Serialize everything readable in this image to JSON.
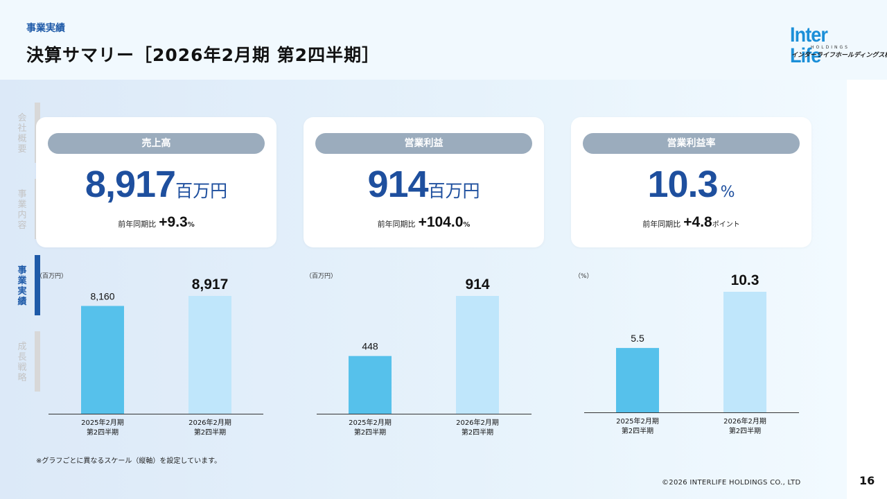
{
  "header": {
    "section_label": "事業実績",
    "title": "決算サマリー［2026年2月期 第2四半期］",
    "logo": {
      "main": "Inter Life",
      "sub": "HOLDINGS",
      "jp": "インターライフホールディングス株式会社"
    }
  },
  "side_nav": [
    {
      "label": "会社概要",
      "active": false
    },
    {
      "label": "事業内容",
      "active": false
    },
    {
      "label": "事業実績",
      "active": true
    },
    {
      "label": "成長戦略",
      "active": false
    }
  ],
  "cards": [
    {
      "title": "売上高",
      "value": "8,917",
      "unit": "百万円",
      "compare_label": "前年同期比",
      "change": "+9.3",
      "change_unit": "%"
    },
    {
      "title": "営業利益",
      "value": "914",
      "unit": "百万円",
      "compare_label": "前年同期比",
      "change": "+104.0",
      "change_unit": "%"
    },
    {
      "title": "営業利益率",
      "value": "10.3",
      "unit": "%",
      "compare_label": "前年同期比",
      "change": "+4.8",
      "change_unit": "ポイント"
    }
  ],
  "chart_data": [
    {
      "type": "bar",
      "unit_label": "（百万円）",
      "categories": [
        "2025年2月期\n第2四半期",
        "2026年2月期\n第2四半期"
      ],
      "values": [
        8160,
        8917
      ],
      "value_labels": [
        "8,160",
        "8,917"
      ],
      "colors": [
        "#56c1eb",
        "#bfe6fb"
      ]
    },
    {
      "type": "bar",
      "unit_label": "（百万円）",
      "categories": [
        "2025年2月期\n第2四半期",
        "2026年2月期\n第2四半期"
      ],
      "values": [
        448,
        914
      ],
      "value_labels": [
        "448",
        "914"
      ],
      "colors": [
        "#56c1eb",
        "#bfe6fb"
      ]
    },
    {
      "type": "bar",
      "unit_label": "（%）",
      "categories": [
        "2025年2月期\n第2四半期",
        "2026年2月期\n第2四半期"
      ],
      "values": [
        5.5,
        10.3
      ],
      "value_labels": [
        "5.5",
        "10.3"
      ],
      "colors": [
        "#56c1eb",
        "#bfe6fb"
      ]
    }
  ],
  "footnote": "※グラフごとに異なるスケール（縦軸）を設定しています。",
  "copyright": "©2026 INTERLIFE HOLDINGS CO., LTD",
  "page_number": "16",
  "colors": {
    "accent": "#1e5aa8",
    "value_blue": "#1e4f9e",
    "pill": "#9bacbd",
    "bar_prev": "#56c1eb",
    "bar_curr": "#bfe6fb"
  }
}
